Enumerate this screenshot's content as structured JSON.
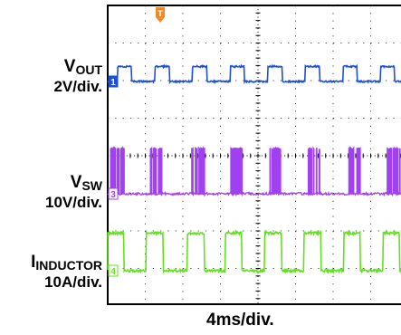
{
  "labels": {
    "vout": {
      "name": "V",
      "sub": "OUT",
      "scale": "2V/div."
    },
    "vsw": {
      "name": "V",
      "sub": "SW",
      "scale": "10V/div."
    },
    "inductor": {
      "name": "I",
      "sub": "INDUCTOR",
      "scale": "10A/div."
    },
    "xaxis": "4ms/div."
  },
  "markers": {
    "ch1": "1",
    "ch3": "3",
    "ch4": "4",
    "trigger": "T"
  },
  "colors": {
    "vout": "#1d4fd8",
    "vsw": "#a040f0",
    "inductor": "#62e21f",
    "trigger": "#f08a24",
    "frame": "#000000",
    "grid": "#000000"
  },
  "chart_data": {
    "type": "line",
    "grid": true,
    "xlabel": "4ms/div.",
    "x_unit_per_div": "4ms",
    "divisions": {
      "x": 10,
      "y": 8
    },
    "series": [
      {
        "name": "VOUT",
        "scale": "2V/div.",
        "shape": "pulse",
        "pulse_centers_div": [
          0.45,
          1.45,
          2.45,
          3.45,
          4.45,
          5.45,
          6.45,
          7.45,
          8.45,
          9.45
        ],
        "pulse_width_div": 0.38,
        "low_div": 0.0,
        "high_div": 0.4
      },
      {
        "name": "VSW",
        "scale": "10V/div.",
        "shape": "burst",
        "burst_centers_div": [
          0.25,
          1.3,
          2.4,
          3.4,
          4.45,
          5.5,
          6.55,
          7.6,
          8.65,
          9.7
        ],
        "burst_width_div": 0.35,
        "low_div": 0.0,
        "high_div": 1.2
      },
      {
        "name": "IINDUCTOR",
        "scale": "10A/div.",
        "shape": "pulse",
        "pulse_centers_div": [
          0.2,
          1.25,
          2.35,
          3.35,
          4.4,
          5.45,
          6.5,
          7.55,
          8.6,
          9.65
        ],
        "pulse_width_div": 0.45,
        "low_div": 0.0,
        "high_div": 1.0
      }
    ]
  }
}
